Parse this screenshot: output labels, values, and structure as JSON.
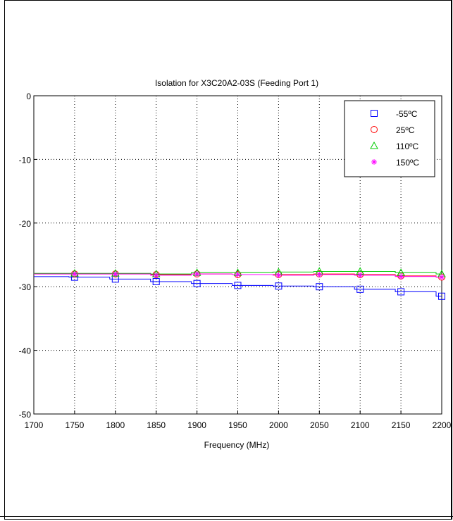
{
  "chart_data": {
    "type": "line",
    "title": "Isolation for X3C20A2-03S (Feeding Port 1)",
    "xlabel": "Frequency (MHz)",
    "ylabel": "",
    "xlim": [
      1700,
      2200
    ],
    "ylim": [
      -50,
      0
    ],
    "xticks": [
      1700,
      1750,
      1800,
      1850,
      1900,
      1950,
      2000,
      2050,
      2100,
      2150,
      2200
    ],
    "yticks": [
      0,
      -10,
      -20,
      -30,
      -40,
      -50
    ],
    "grid": true,
    "legend_position": "top-right",
    "x": [
      1750,
      1800,
      1850,
      1900,
      1950,
      2000,
      2050,
      2100,
      2150,
      2200
    ],
    "series": [
      {
        "name": "-55ºC",
        "color": "#0000ff",
        "marker": "square",
        "values": [
          -28.5,
          -28.8,
          -29.2,
          -29.5,
          -29.8,
          -29.9,
          -30.0,
          -30.4,
          -30.8,
          -31.5
        ]
      },
      {
        "name": "25ºC",
        "color": "#ff0000",
        "marker": "circle",
        "values": [
          -28.0,
          -28.0,
          -28.1,
          -28.0,
          -28.1,
          -28.1,
          -28.0,
          -28.1,
          -28.3,
          -28.5
        ]
      },
      {
        "name": "110ºC",
        "color": "#00cc00",
        "marker": "triangle",
        "values": [
          -27.9,
          -27.9,
          -28.0,
          -27.8,
          -27.8,
          -27.7,
          -27.6,
          -27.6,
          -27.8,
          -28.0
        ]
      },
      {
        "name": "150ºC",
        "color": "#ff00ff",
        "marker": "star",
        "values": [
          -28.0,
          -28.0,
          -28.2,
          -28.0,
          -28.1,
          -28.2,
          -28.1,
          -28.2,
          -28.4,
          -28.5
        ]
      }
    ]
  }
}
